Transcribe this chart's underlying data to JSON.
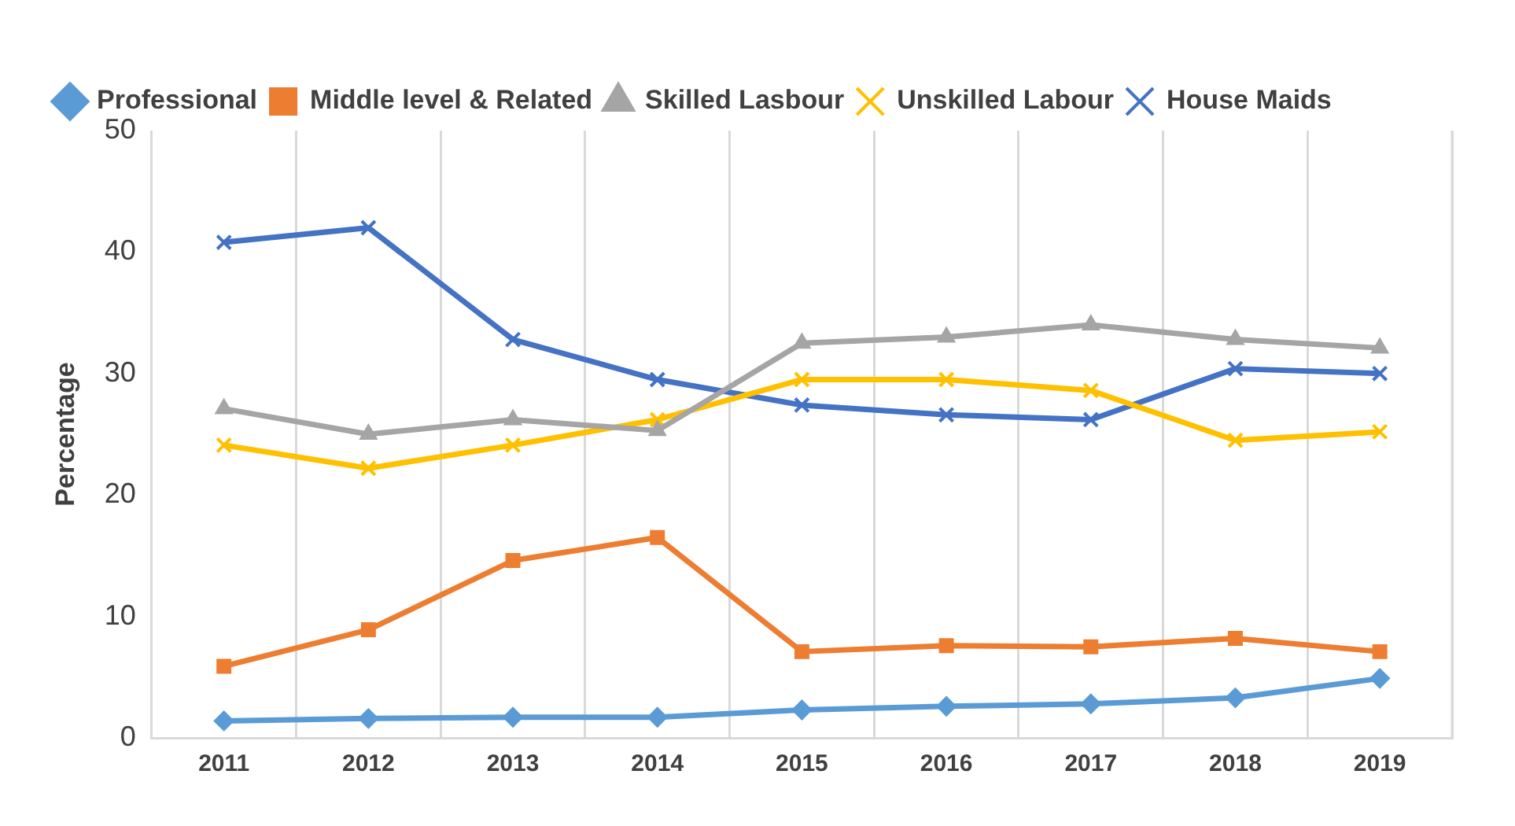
{
  "chart_data": {
    "type": "line",
    "ylabel": "Percentage",
    "categories": [
      "2011",
      "2012",
      "2013",
      "2014",
      "2015",
      "2016",
      "2017",
      "2018",
      "2019"
    ],
    "series": [
      {
        "name": "Professional",
        "color": "#5b9bd5",
        "marker": "diamond",
        "values": [
          1.4,
          1.6,
          1.7,
          1.7,
          2.3,
          2.6,
          2.8,
          3.3,
          4.9
        ]
      },
      {
        "name": "Middle level & Related",
        "color": "#ed7d31",
        "marker": "square",
        "values": [
          5.9,
          8.9,
          14.6,
          16.5,
          7.1,
          7.6,
          7.5,
          8.2,
          7.1
        ]
      },
      {
        "name": "Skilled Lasbour",
        "color": "#a5a5a5",
        "marker": "triangle",
        "values": [
          27.1,
          25.0,
          26.2,
          25.3,
          32.5,
          33.0,
          34.0,
          32.8,
          32.1
        ]
      },
      {
        "name": "Unskilled Labour",
        "color": "#ffc000",
        "marker": "cross",
        "values": [
          24.1,
          22.2,
          24.1,
          26.2,
          29.5,
          29.5,
          28.6,
          24.5,
          25.2
        ]
      },
      {
        "name": "House Maids",
        "color": "#4472c4",
        "marker": "cross",
        "values": [
          40.8,
          42.0,
          32.8,
          29.5,
          27.4,
          26.6,
          26.2,
          30.4,
          30.0
        ]
      }
    ],
    "ylim": [
      0,
      50
    ],
    "yticks": [
      0,
      10,
      20,
      30,
      40,
      50
    ],
    "grid": "x",
    "legend": "top"
  }
}
